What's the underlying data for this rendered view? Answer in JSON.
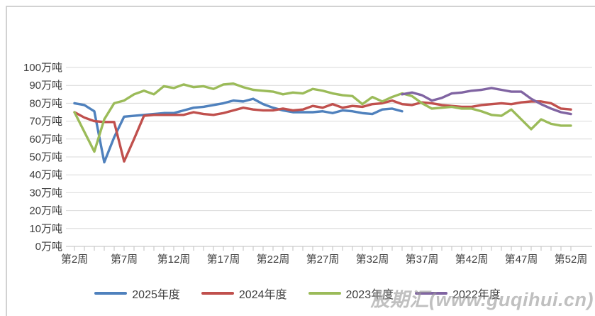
{
  "watermark": {
    "text": "股期汇(www.guqihui.cn)"
  },
  "colors": {
    "background": "#FFFFFF",
    "gridline": "#D9D9D9",
    "axis_tick": "#BFBFBF",
    "frame_border": "#C4C4C4",
    "axis_text": "#404040",
    "watermark_text": "#9A9A9A"
  },
  "chart_data": {
    "type": "line",
    "title": "",
    "xlabel": "",
    "ylabel": "",
    "grid": "horizontal",
    "legend_position": "bottom",
    "y_axis": {
      "min": 0,
      "max": 100,
      "step": 10,
      "unit": "万吨",
      "tick_labels": [
        "0万吨",
        "10万吨",
        "20万吨",
        "30万吨",
        "40万吨",
        "50万吨",
        "60万吨",
        "70万吨",
        "80万吨",
        "90万吨",
        "100万吨"
      ]
    },
    "x_axis": {
      "unit": "周",
      "week_min": 2,
      "week_max": 52,
      "ticks": [
        {
          "week": 2,
          "label": "第2周"
        },
        {
          "week": 7,
          "label": "第7周"
        },
        {
          "week": 12,
          "label": "第12周"
        },
        {
          "week": 17,
          "label": "第17周"
        },
        {
          "week": 22,
          "label": "第22周"
        },
        {
          "week": 27,
          "label": "第27周"
        },
        {
          "week": 32,
          "label": "第32周"
        },
        {
          "week": 37,
          "label": "第37周"
        },
        {
          "week": 42,
          "label": "第42周"
        },
        {
          "week": 47,
          "label": "第47周"
        },
        {
          "week": 52,
          "label": "第52周"
        }
      ]
    },
    "series": [
      {
        "name": "2025年度",
        "color": "#4F81BD",
        "start_week": 2,
        "values": [
          80,
          79,
          75.5,
          47,
          61,
          72.5,
          73,
          73.5,
          74,
          74.5,
          74.5,
          76,
          77.5,
          78,
          79,
          80,
          81.5,
          81,
          82.5,
          79.5,
          77.5,
          76,
          75,
          75,
          75,
          75.5,
          74.5,
          76,
          75.5,
          74.5,
          74,
          76.5,
          77,
          75.5
        ]
      },
      {
        "name": "2024年度",
        "color": "#C0504D",
        "start_week": 2,
        "values": [
          75,
          72,
          70,
          69.5,
          69.5,
          47.5,
          60,
          73,
          73.5,
          73.5,
          73.5,
          73.5,
          75,
          74,
          73.5,
          74.5,
          76,
          77.5,
          76.5,
          76,
          76,
          77,
          76,
          76.5,
          78.5,
          77.5,
          79.5,
          77.5,
          78.5,
          78,
          79.5,
          80,
          81.5,
          79.5,
          79,
          80.5,
          80,
          79,
          78.5,
          78,
          78,
          79,
          79.5,
          80,
          79.5,
          80.5,
          81,
          81,
          80,
          77,
          76.5
        ]
      },
      {
        "name": "2023年度",
        "color": "#9BBB59",
        "start_week": 2,
        "values": [
          75,
          64,
          53,
          71,
          80,
          81.5,
          85,
          87,
          85,
          89.5,
          88.5,
          90.5,
          89,
          89.5,
          88,
          90.5,
          91,
          89,
          87.5,
          87,
          86.5,
          85,
          86,
          85.5,
          88,
          87,
          85.5,
          84.5,
          84,
          79.5,
          83.5,
          81,
          83.5,
          85.5,
          84,
          80,
          77,
          77.5,
          78,
          77,
          77,
          75.5,
          73.5,
          73,
          76.5,
          71,
          65.5,
          71,
          68.5,
          67.5,
          67.5
        ]
      },
      {
        "name": "2022年度",
        "color": "#8064A2",
        "start_week": 35,
        "values": [
          85,
          86,
          84.5,
          81.5,
          83,
          85.5,
          86,
          87,
          87.5,
          88.5,
          87.5,
          86.5,
          86.5,
          82.5,
          79.5,
          77,
          75,
          74
        ]
      }
    ]
  }
}
